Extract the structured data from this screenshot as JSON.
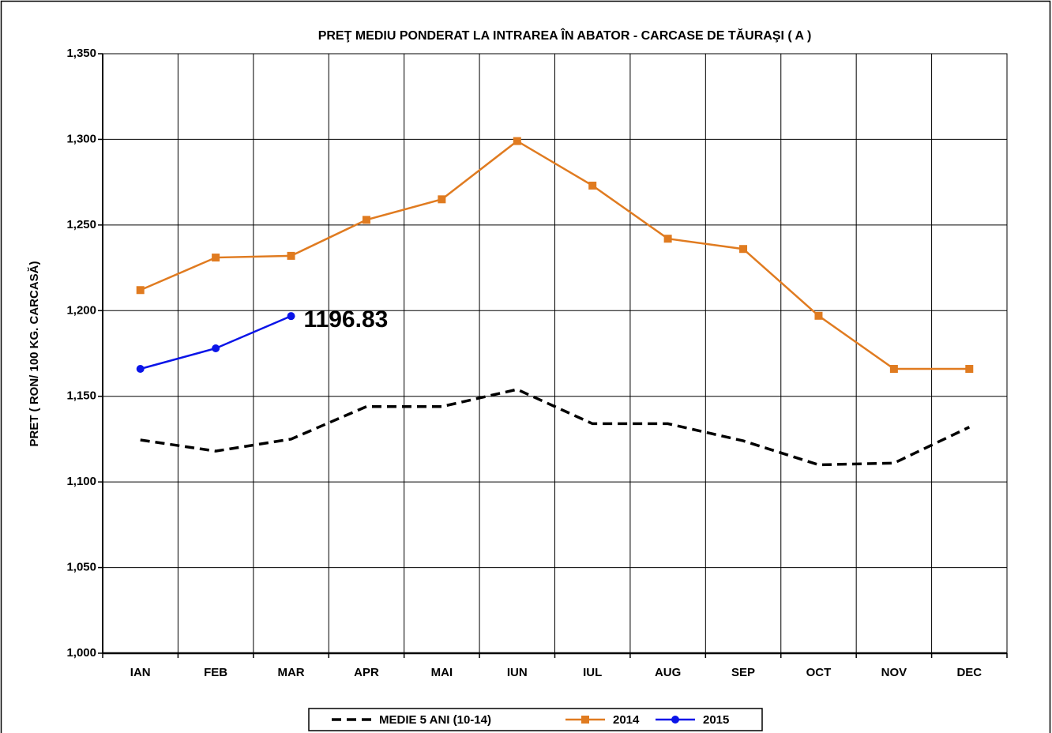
{
  "chart_data": {
    "type": "line",
    "title": "PREŢ MEDIU PONDERAT LA INTRAREA ÎN ABATOR - CARCASE DE TĂURAŞI ( A )",
    "y_label": "PRET ( RON/ 100 KG. CARCASĂ)",
    "categories": [
      "IAN",
      "FEB",
      "MAR",
      "APR",
      "MAI",
      "IUN",
      "IUL",
      "AUG",
      "SEP",
      "OCT",
      "NOV",
      "DEC"
    ],
    "series": [
      {
        "name": "MEDIE 5 ANI (10-14)",
        "color": "#000000",
        "dash": true,
        "marker": "none",
        "values": [
          1124.5,
          1118,
          1125,
          1144,
          1144,
          1154,
          1134,
          1134,
          1124,
          1110,
          1111,
          1132
        ]
      },
      {
        "name": "2014",
        "color": "#e07b20",
        "dash": false,
        "marker": "square",
        "values": [
          1212,
          1231,
          1232,
          1253,
          1265,
          1299,
          1273,
          1242,
          1236,
          1197,
          1166,
          1166
        ]
      },
      {
        "name": "2015",
        "color": "#0a14e8",
        "dash": false,
        "marker": "circle",
        "values": [
          1166,
          1178,
          1196.83,
          null,
          null,
          null,
          null,
          null,
          null,
          null,
          null,
          null
        ]
      }
    ],
    "data_label": {
      "series": 2,
      "index": 2
    },
    "ylim": [
      1000,
      1350
    ],
    "yticks": [
      {
        "value": 1000,
        "label": "1,000"
      },
      {
        "value": 1050,
        "label": "1,050"
      },
      {
        "value": 1100,
        "label": "1,100"
      },
      {
        "value": 1150,
        "label": "1,150"
      },
      {
        "value": 1200,
        "label": "1,200"
      },
      {
        "value": 1250,
        "label": "1,250"
      },
      {
        "value": 1300,
        "label": "1,300"
      },
      {
        "value": 1350,
        "label": "1,350"
      }
    ],
    "grid": true,
    "legend": "bottom"
  }
}
